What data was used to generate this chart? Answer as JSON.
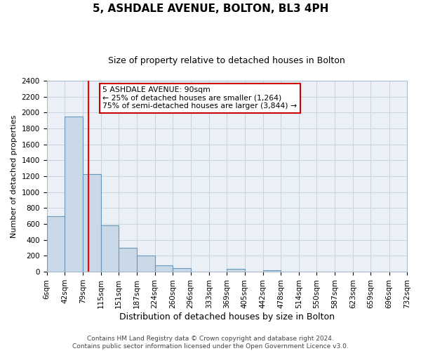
{
  "title": "5, ASHDALE AVENUE, BOLTON, BL3 4PH",
  "subtitle": "Size of property relative to detached houses in Bolton",
  "xlabel": "Distribution of detached houses by size in Bolton",
  "ylabel": "Number of detached properties",
  "bin_edges": [
    6,
    42,
    79,
    115,
    151,
    187,
    224,
    260,
    296,
    333,
    369,
    405,
    442,
    478,
    514,
    550,
    587,
    623,
    659,
    696,
    732
  ],
  "bin_labels": [
    "6sqm",
    "42sqm",
    "79sqm",
    "115sqm",
    "151sqm",
    "187sqm",
    "224sqm",
    "260sqm",
    "296sqm",
    "333sqm",
    "369sqm",
    "405sqm",
    "442sqm",
    "478sqm",
    "514sqm",
    "550sqm",
    "587sqm",
    "623sqm",
    "659sqm",
    "696sqm",
    "732sqm"
  ],
  "counts": [
    700,
    1950,
    1230,
    580,
    300,
    200,
    80,
    45,
    0,
    0,
    35,
    0,
    15,
    0,
    0,
    0,
    0,
    0,
    0,
    0
  ],
  "bar_color": "#c9d9e8",
  "bar_edge_color": "#6699bb",
  "red_line_x": 90,
  "ylim": [
    0,
    2400
  ],
  "yticks": [
    0,
    200,
    400,
    600,
    800,
    1000,
    1200,
    1400,
    1600,
    1800,
    2000,
    2200,
    2400
  ],
  "annotation_title": "5 ASHDALE AVENUE: 90sqm",
  "annotation_line1": "← 25% of detached houses are smaller (1,264)",
  "annotation_line2": "75% of semi-detached houses are larger (3,844) →",
  "annotation_box_color": "#ffffff",
  "annotation_box_edge_color": "#cc0000",
  "footer_line1": "Contains HM Land Registry data © Crown copyright and database right 2024.",
  "footer_line2": "Contains public sector information licensed under the Open Government Licence v3.0.",
  "background_color": "#eaf0f6",
  "grid_color": "#c8d4de",
  "title_fontsize": 11,
  "subtitle_fontsize": 9,
  "ylabel_fontsize": 8,
  "xlabel_fontsize": 9,
  "tick_fontsize": 7.5,
  "footer_fontsize": 6.5
}
